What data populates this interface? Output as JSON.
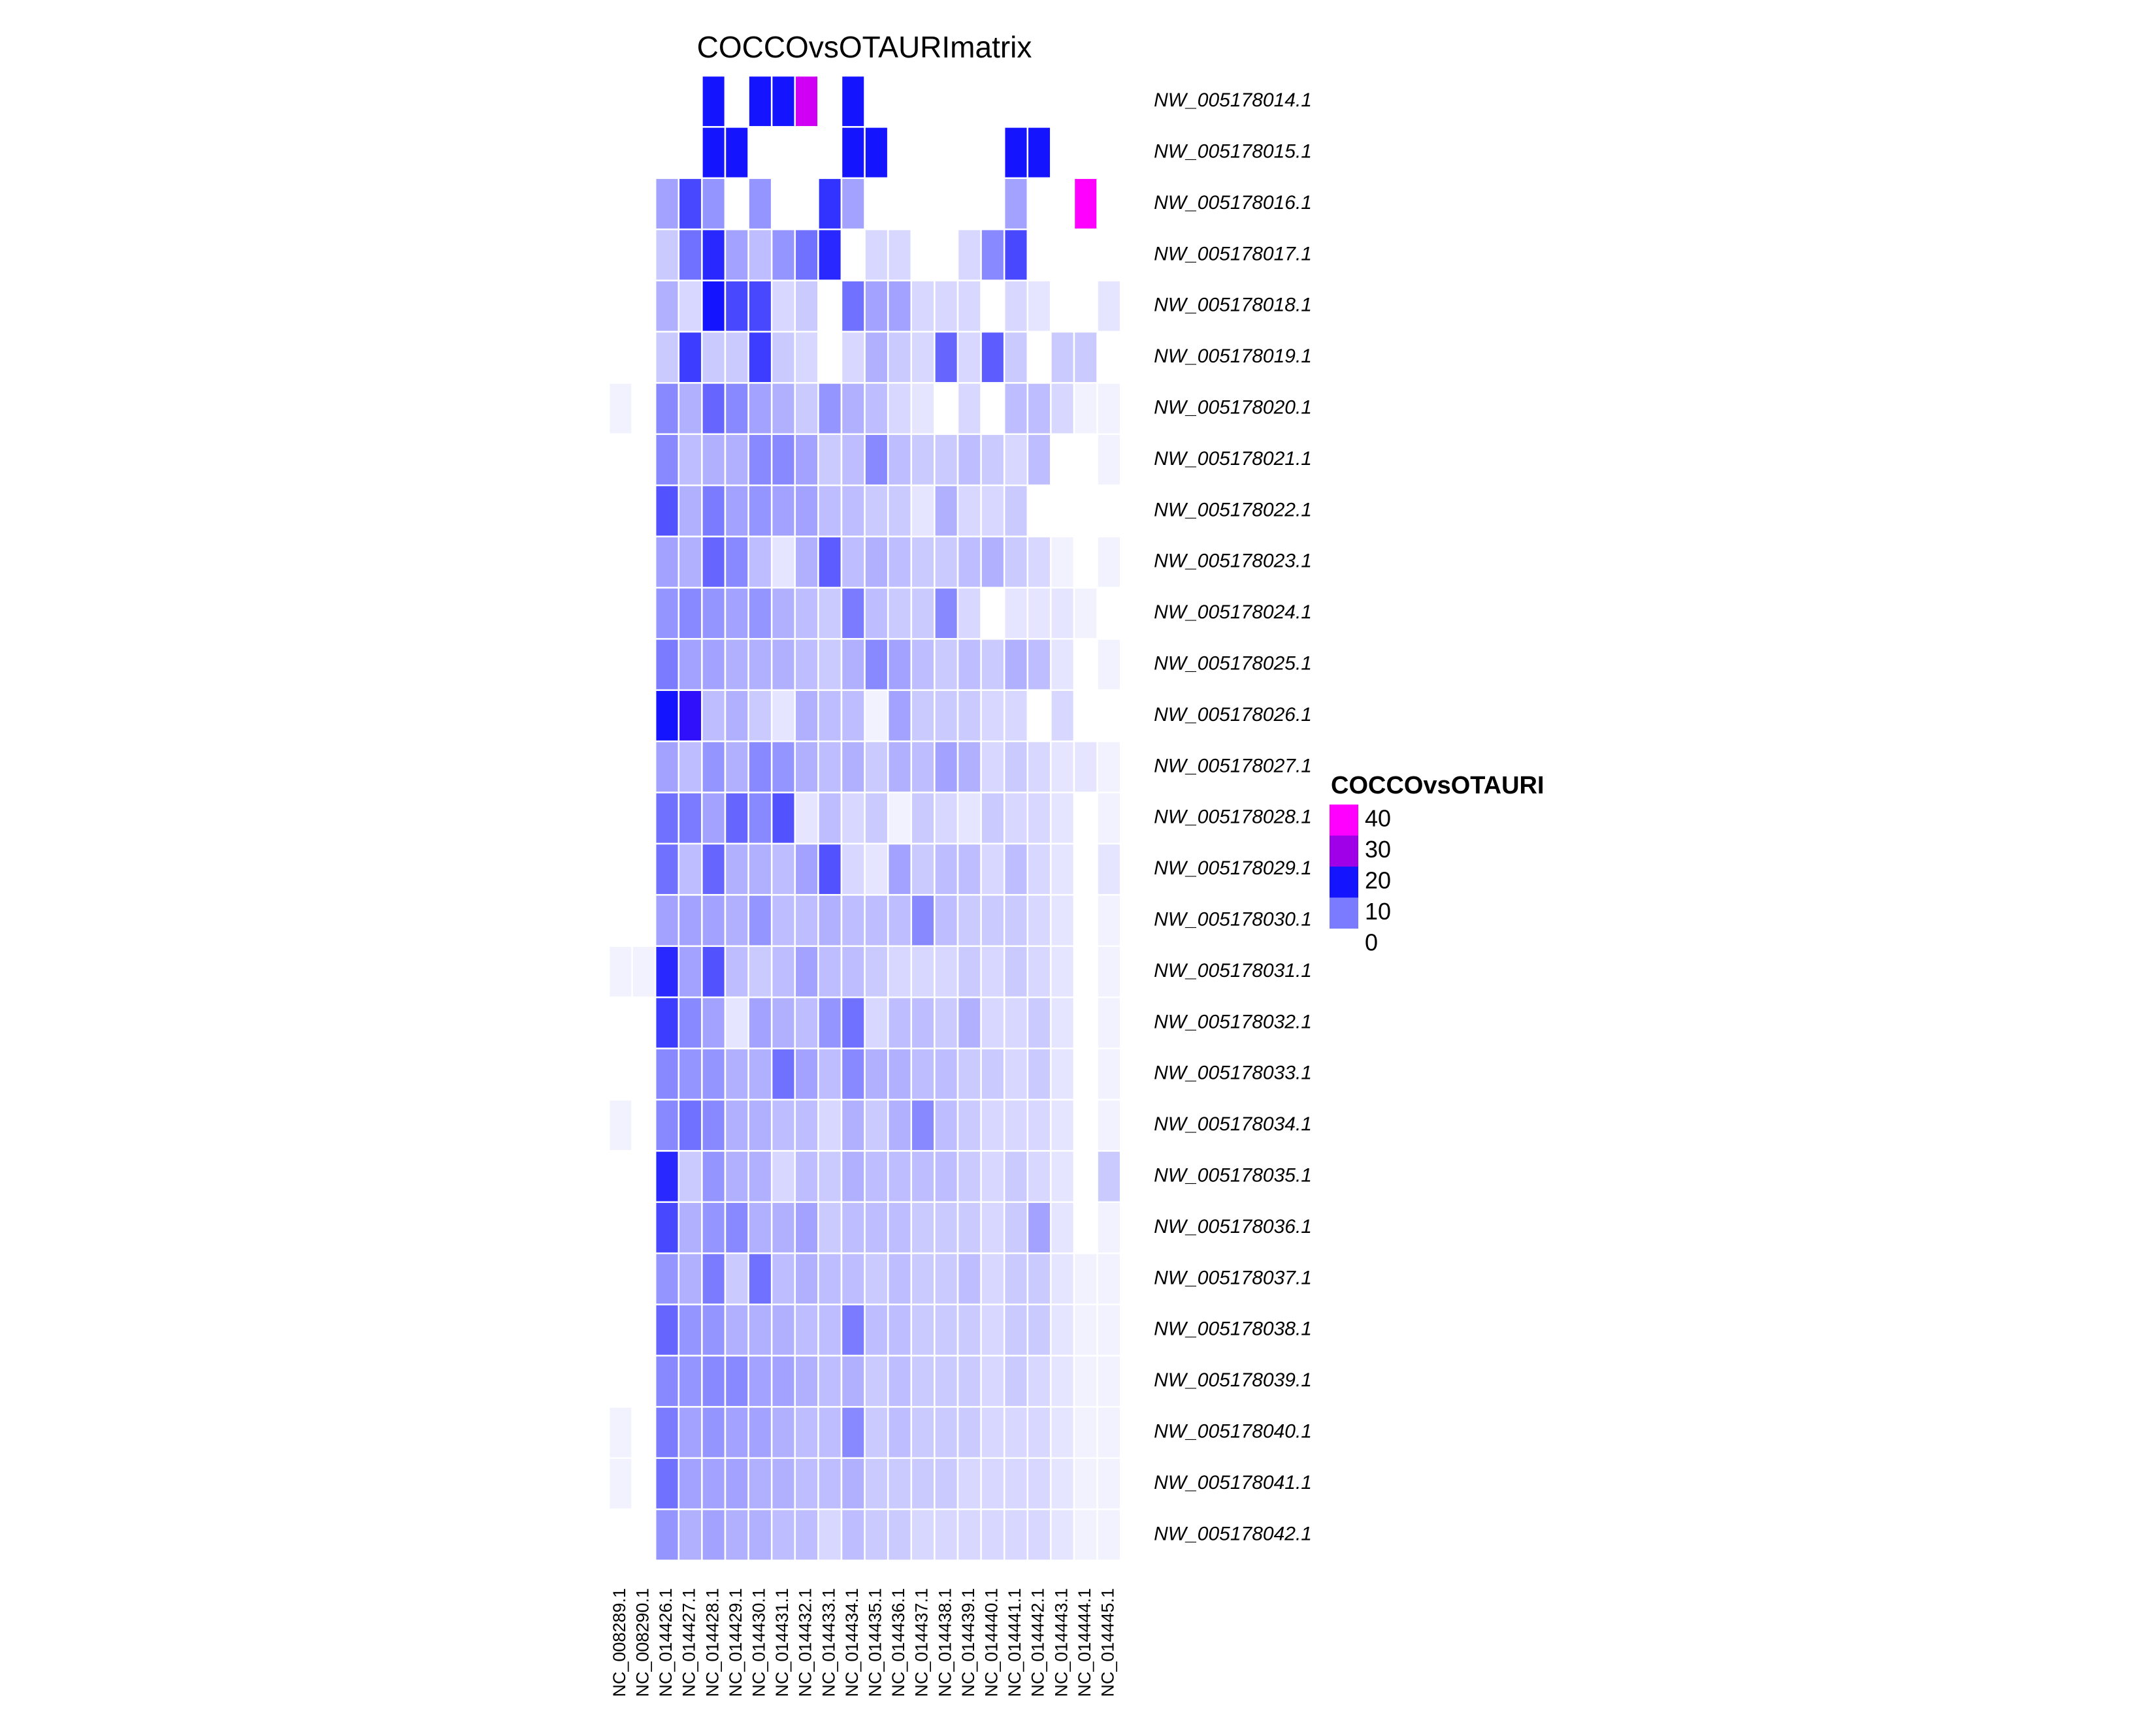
{
  "chart_data": {
    "type": "heatmap",
    "title": "COCCOvsOTAURImatrix",
    "legend_title": "COCCOvsOTAURI",
    "legend_ticks": [
      40,
      30,
      20,
      10,
      0
    ],
    "value_range": [
      0,
      45
    ],
    "color_stops": [
      {
        "value": 0,
        "color": "#ffffff"
      },
      {
        "value": 10,
        "color": "#7b7bff"
      },
      {
        "value": 20,
        "color": "#1414ff"
      },
      {
        "value": 30,
        "color": "#a000e8"
      },
      {
        "value": 40,
        "color": "#ff00ff"
      }
    ],
    "missing_color": "#ffffff",
    "columns": [
      "NC_008289.1",
      "NC_008290.1",
      "NC_014426.1",
      "NC_014427.1",
      "NC_014428.1",
      "NC_014429.1",
      "NC_014430.1",
      "NC_014431.1",
      "NC_014432.1",
      "NC_014433.1",
      "NC_014434.1",
      "NC_014435.1",
      "NC_014436.1",
      "NC_014437.1",
      "NC_014438.1",
      "NC_014439.1",
      "NC_014440.1",
      "NC_014441.1",
      "NC_014442.1",
      "NC_014443.1",
      "NC_014444.1",
      "NC_014445.1"
    ],
    "rows": [
      "NW_005178014.1",
      "NW_005178015.1",
      "NW_005178016.1",
      "NW_005178017.1",
      "NW_005178018.1",
      "NW_005178019.1",
      "NW_005178020.1",
      "NW_005178021.1",
      "NW_005178022.1",
      "NW_005178023.1",
      "NW_005178024.1",
      "NW_005178025.1",
      "NW_005178026.1",
      "NW_005178027.1",
      "NW_005178028.1",
      "NW_005178029.1",
      "NW_005178030.1",
      "NW_005178031.1",
      "NW_005178032.1",
      "NW_005178033.1",
      "NW_005178034.1",
      "NW_005178035.1",
      "NW_005178036.1",
      "NW_005178037.1",
      "NW_005178038.1",
      "NW_005178039.1",
      "NW_005178040.1",
      "NW_005178041.1",
      "NW_005178042.1"
    ],
    "values": [
      [
        null,
        null,
        null,
        null,
        20,
        null,
        20,
        20,
        35,
        null,
        20,
        null,
        null,
        null,
        null,
        null,
        null,
        null,
        null,
        null,
        null,
        null
      ],
      [
        null,
        null,
        null,
        null,
        20,
        20,
        null,
        null,
        null,
        null,
        20,
        20,
        null,
        null,
        null,
        null,
        null,
        20,
        20,
        null,
        null,
        null
      ],
      [
        null,
        null,
        7,
        15,
        8,
        null,
        8,
        null,
        null,
        17,
        7,
        null,
        null,
        null,
        null,
        null,
        null,
        7,
        null,
        null,
        42,
        null
      ],
      [
        null,
        null,
        4,
        11,
        18,
        7,
        5,
        8,
        11,
        18,
        null,
        3,
        3,
        null,
        null,
        3,
        9,
        15,
        null,
        null,
        null,
        null
      ],
      [
        null,
        null,
        6,
        3,
        20,
        15,
        15,
        3,
        4,
        null,
        11,
        7,
        7,
        3,
        3,
        3,
        null,
        3,
        2,
        null,
        null,
        2
      ],
      [
        null,
        null,
        4,
        16,
        4,
        4,
        16,
        4,
        3,
        null,
        3,
        6,
        4,
        3,
        12,
        3,
        13,
        4,
        null,
        4,
        4,
        null
      ],
      [
        1,
        null,
        9,
        6,
        12,
        9,
        7,
        6,
        4,
        8,
        6,
        5,
        3,
        2,
        null,
        3,
        null,
        5,
        5,
        3,
        1,
        1
      ],
      [
        null,
        null,
        9,
        5,
        6,
        6,
        9,
        9,
        7,
        4,
        5,
        9,
        5,
        4,
        4,
        5,
        4,
        3,
        5,
        null,
        null,
        1
      ],
      [
        null,
        null,
        14,
        6,
        10,
        7,
        8,
        7,
        7,
        5,
        5,
        4,
        4,
        2,
        6,
        3,
        3,
        4,
        null,
        null,
        null,
        null
      ],
      [
        null,
        null,
        7,
        6,
        12,
        9,
        5,
        2,
        6,
        13,
        5,
        6,
        5,
        4,
        4,
        5,
        6,
        4,
        3,
        1,
        null,
        1
      ],
      [
        null,
        null,
        8,
        9,
        8,
        7,
        8,
        6,
        5,
        4,
        10,
        5,
        4,
        4,
        9,
        3,
        null,
        2,
        2,
        2,
        1,
        null
      ],
      [
        null,
        null,
        10,
        7,
        7,
        6,
        6,
        6,
        5,
        4,
        6,
        9,
        7,
        5,
        4,
        5,
        4,
        6,
        5,
        2,
        null,
        1
      ],
      [
        null,
        null,
        20,
        22,
        5,
        6,
        4,
        2,
        6,
        5,
        5,
        1,
        7,
        4,
        4,
        4,
        3,
        3,
        null,
        3,
        null,
        null
      ],
      [
        null,
        null,
        7,
        5,
        8,
        6,
        9,
        8,
        6,
        5,
        6,
        4,
        6,
        5,
        7,
        6,
        3,
        4,
        3,
        2,
        2,
        1
      ],
      [
        null,
        null,
        11,
        10,
        7,
        12,
        9,
        14,
        2,
        5,
        3,
        4,
        1,
        4,
        3,
        2,
        4,
        3,
        3,
        2,
        null,
        1
      ],
      [
        null,
        null,
        11,
        5,
        12,
        6,
        6,
        5,
        7,
        14,
        3,
        2,
        7,
        4,
        5,
        5,
        3,
        5,
        3,
        2,
        null,
        2
      ],
      [
        null,
        null,
        7,
        7,
        7,
        6,
        8,
        5,
        5,
        6,
        5,
        5,
        5,
        9,
        5,
        4,
        4,
        4,
        3,
        2,
        null,
        1
      ],
      [
        1,
        1,
        18,
        7,
        14,
        5,
        4,
        5,
        7,
        5,
        5,
        4,
        3,
        3,
        3,
        4,
        3,
        4,
        3,
        2,
        null,
        1
      ],
      [
        null,
        null,
        16,
        9,
        7,
        2,
        7,
        6,
        5,
        8,
        11,
        3,
        5,
        5,
        4,
        6,
        3,
        3,
        4,
        2,
        null,
        1
      ],
      [
        null,
        null,
        9,
        8,
        8,
        6,
        6,
        11,
        7,
        5,
        9,
        6,
        6,
        5,
        5,
        4,
        4,
        3,
        4,
        2,
        null,
        1
      ],
      [
        1,
        null,
        9,
        11,
        9,
        6,
        6,
        5,
        5,
        3,
        6,
        4,
        6,
        9,
        5,
        4,
        3,
        3,
        3,
        2,
        null,
        1
      ],
      [
        null,
        null,
        18,
        4,
        8,
        6,
        6,
        3,
        5,
        4,
        6,
        5,
        5,
        5,
        5,
        4,
        3,
        4,
        3,
        2,
        null,
        4
      ],
      [
        null,
        null,
        15,
        6,
        8,
        9,
        6,
        6,
        7,
        4,
        5,
        5,
        5,
        4,
        4,
        4,
        3,
        4,
        7,
        2,
        null,
        1
      ],
      [
        null,
        null,
        8,
        6,
        10,
        4,
        11,
        5,
        6,
        5,
        5,
        4,
        5,
        4,
        4,
        5,
        3,
        4,
        4,
        2,
        1,
        1
      ],
      [
        null,
        null,
        12,
        8,
        8,
        6,
        6,
        6,
        5,
        5,
        10,
        5,
        5,
        4,
        4,
        4,
        3,
        4,
        4,
        2,
        1,
        1
      ],
      [
        null,
        null,
        9,
        8,
        9,
        9,
        7,
        7,
        6,
        5,
        6,
        4,
        5,
        4,
        4,
        4,
        3,
        4,
        3,
        2,
        1,
        1
      ],
      [
        1,
        null,
        10,
        7,
        8,
        7,
        7,
        6,
        5,
        5,
        9,
        4,
        5,
        4,
        4,
        4,
        3,
        3,
        3,
        2,
        1,
        1
      ],
      [
        1,
        null,
        11,
        7,
        7,
        7,
        6,
        6,
        5,
        5,
        6,
        4,
        4,
        4,
        4,
        3,
        3,
        3,
        3,
        2,
        1,
        1
      ],
      [
        null,
        null,
        8,
        6,
        7,
        6,
        6,
        5,
        5,
        3,
        5,
        4,
        4,
        3,
        3,
        3,
        3,
        3,
        3,
        2,
        1,
        1
      ]
    ]
  }
}
